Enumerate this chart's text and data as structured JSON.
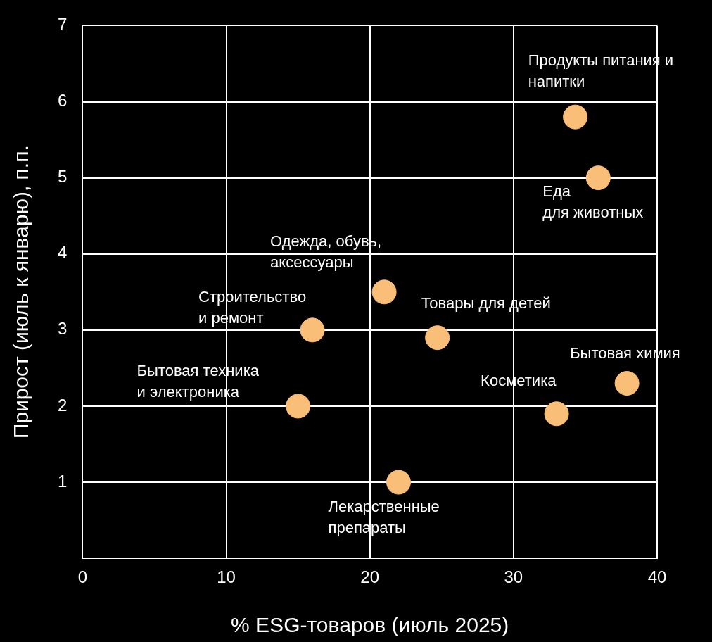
{
  "chart_data": {
    "type": "scatter",
    "xlabel": "% ESG-товаров (июль 2025)",
    "ylabel": "Прирост (июль к январю), п.п.",
    "x": [
      34.3,
      35.9,
      21.0,
      16.0,
      24.7,
      37.9,
      33.0,
      15.0,
      22.0
    ],
    "series": [
      {
        "color": "#f9bf78",
        "values": [
          5.8,
          5.0,
          3.5,
          3.0,
          2.9,
          2.3,
          1.9,
          2.0,
          1.0
        ]
      }
    ],
    "xlim": [
      0,
      40
    ],
    "xticks": [
      0,
      10,
      20,
      30,
      40
    ],
    "ylim": [
      0,
      7
    ],
    "yticks": [
      1,
      2,
      3,
      4,
      5,
      6,
      7
    ],
    "grid": true,
    "legend": false,
    "marker": "circle",
    "annotations": [
      {
        "text": "Продукты питания и\nнапитки",
        "x": 34.3,
        "y": 5.8
      },
      {
        "text": "Еда\nдля животных",
        "x": 35.9,
        "y": 5.0
      },
      {
        "text": "Одежда, обувь,\nаксессуары",
        "x": 21.0,
        "y": 3.5
      },
      {
        "text": "Строительство\nи ремонт",
        "x": 16.0,
        "y": 3.0
      },
      {
        "text": "Товары для детей",
        "x": 24.7,
        "y": 2.9
      },
      {
        "text": "Бытовая химия",
        "x": 37.9,
        "y": 2.3
      },
      {
        "text": "Косметика",
        "x": 33.0,
        "y": 1.9
      },
      {
        "text": "Бытовая техника\nи электроника",
        "x": 15.0,
        "y": 2.0
      },
      {
        "text": "Лекарственные\nпрепараты",
        "x": 22.0,
        "y": 1.0
      }
    ]
  }
}
